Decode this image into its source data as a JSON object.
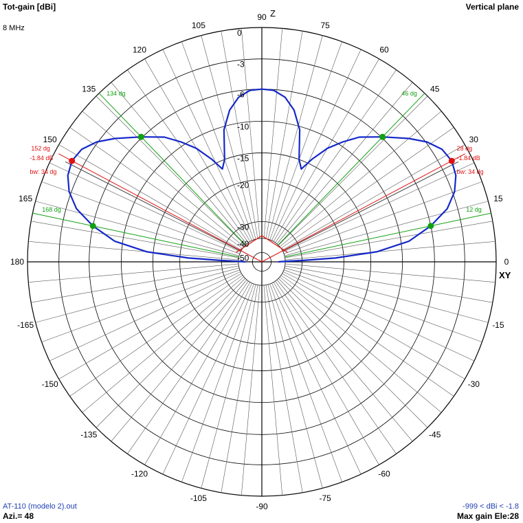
{
  "header": {
    "title": "Tot-gain [dBi]",
    "frequency": "8 MHz",
    "plane": "Vertical plane"
  },
  "footer": {
    "file": "AT-110 (modelo 2).out",
    "azimuth": "Azi.= 48",
    "range": "-999 < dBi < -1.8",
    "max_gain": "Max gain Ele:28"
  },
  "axis_labels": {
    "top": "Z",
    "right": "XY"
  },
  "colors": {
    "pattern": "#1428c8",
    "halfpower": "#e01010",
    "gridline": "#303030",
    "accent_green": "#10a010"
  },
  "chart_data": {
    "type": "polar-line",
    "angle_unit": "deg",
    "angle_ticks": [
      0,
      15,
      30,
      45,
      60,
      75,
      90,
      105,
      120,
      135,
      150,
      165,
      180,
      -165,
      -150,
      -135,
      -120,
      -105,
      -90,
      -75,
      -60,
      -45,
      -30,
      -15
    ],
    "radial_ticks": [
      0,
      -3,
      -6,
      -10,
      -15,
      -20,
      -30,
      -40,
      -50
    ],
    "pattern_dbi": [
      [
        0,
        -45
      ],
      [
        1,
        -42
      ],
      [
        2,
        -30
      ],
      [
        3,
        -22
      ],
      [
        5,
        -14
      ],
      [
        8,
        -9
      ],
      [
        12,
        -6
      ],
      [
        16,
        -4
      ],
      [
        20,
        -2.8
      ],
      [
        24,
        -2.1
      ],
      [
        28,
        -1.84
      ],
      [
        32,
        -2.1
      ],
      [
        36,
        -2.9
      ],
      [
        40,
        -4.1
      ],
      [
        46,
        -5.9
      ],
      [
        52,
        -7.8
      ],
      [
        56,
        -9.5
      ],
      [
        60,
        -11.5
      ],
      [
        64,
        -14.2
      ],
      [
        67,
        -16.5
      ],
      [
        70,
        -15.0
      ],
      [
        74,
        -10.5
      ],
      [
        78,
        -8.2
      ],
      [
        82,
        -6.8
      ],
      [
        86,
        -6.1
      ],
      [
        90,
        -6.0
      ]
    ],
    "halfpower_lines": [
      {
        "angle": 28,
        "label": "28 dg"
      },
      {
        "angle": 152,
        "label": "152 dg"
      }
    ],
    "halfpower_annotations": {
      "gain": "-1.84 dB",
      "beamwidth": "bw: 34 dg"
    },
    "green_lines": [
      {
        "angle": 12,
        "label": "12 dg"
      },
      {
        "angle": 46,
        "label": "46 dg"
      },
      {
        "angle": 134,
        "label": "134 dg"
      },
      {
        "angle": 168,
        "label": "168 dg"
      }
    ]
  }
}
